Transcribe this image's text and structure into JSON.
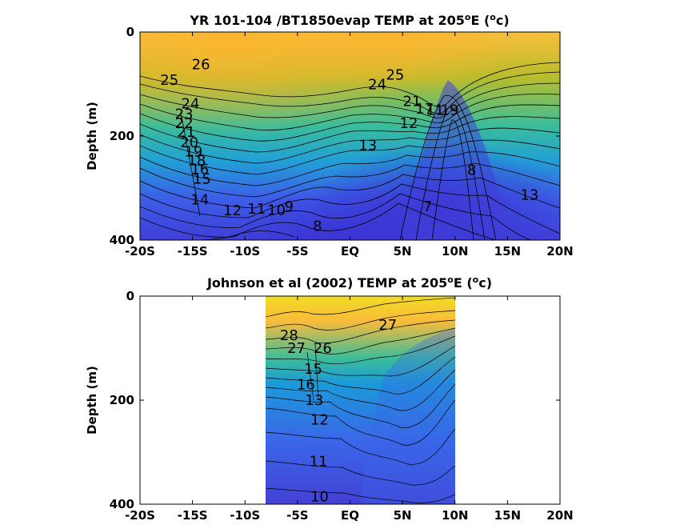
{
  "chart_data": [
    {
      "type": "contour",
      "title": "YR 101-104 /BT1850evap TEMP at 205",
      "title_suffix": "E (",
      "title_end": "c)",
      "title_sup": "o",
      "xlabel": "",
      "ylabel": "Depth (m)",
      "x_ticks": [
        -20,
        -15,
        -10,
        -5,
        0,
        5,
        10,
        15,
        20
      ],
      "x_tick_labels": [
        "-20S",
        "-15S",
        "-10S",
        "-5S",
        "EQ",
        "5N",
        "10N",
        "15N",
        "20N"
      ],
      "xlim": [
        -20,
        20
      ],
      "y_ticks": [
        0,
        200,
        400
      ],
      "y_tick_labels": [
        "0",
        "200",
        "400"
      ],
      "ylim": [
        0,
        400
      ],
      "y_reversed": true,
      "data_xlim": [
        -20,
        20
      ],
      "contour_labels": [
        {
          "text": "26",
          "x": -14.2,
          "y": 62
        },
        {
          "text": "25",
          "x": -17.2,
          "y": 92
        },
        {
          "text": "24",
          "x": -15.2,
          "y": 138
        },
        {
          "text": "23",
          "x": -15.8,
          "y": 158
        },
        {
          "text": "22",
          "x": -15.8,
          "y": 175
        },
        {
          "text": "21",
          "x": -15.6,
          "y": 192
        },
        {
          "text": "20",
          "x": -15.3,
          "y": 212
        },
        {
          "text": "19",
          "x": -14.9,
          "y": 230
        },
        {
          "text": "18",
          "x": -14.6,
          "y": 247
        },
        {
          "text": "16",
          "x": -14.3,
          "y": 264
        },
        {
          "text": "15",
          "x": -14.1,
          "y": 282
        },
        {
          "text": "14",
          "x": -14.3,
          "y": 322
        },
        {
          "text": "12",
          "x": -11.2,
          "y": 343
        },
        {
          "text": "11",
          "x": -8.9,
          "y": 340
        },
        {
          "text": "10",
          "x": -7.0,
          "y": 342
        },
        {
          "text": "9",
          "x": -5.8,
          "y": 335
        },
        {
          "text": "8",
          "x": -3.1,
          "y": 373
        },
        {
          "text": "13",
          "x": 1.7,
          "y": 218
        },
        {
          "text": "24",
          "x": 2.6,
          "y": 101
        },
        {
          "text": "25",
          "x": 4.3,
          "y": 82
        },
        {
          "text": "7",
          "x": 7.4,
          "y": 335
        },
        {
          "text": "8",
          "x": 11.6,
          "y": 265
        },
        {
          "text": "13",
          "x": 17.1,
          "y": 313
        },
        {
          "text": "21",
          "x": 5.9,
          "y": 133
        },
        {
          "text": "17",
          "x": 7.1,
          "y": 148
        },
        {
          "text": "11",
          "x": 8.1,
          "y": 150
        },
        {
          "text": "19",
          "x": 9.5,
          "y": 150
        },
        {
          "text": "12",
          "x": 5.6,
          "y": 175
        }
      ]
    },
    {
      "type": "contour",
      "title": "Johnson et al (2002) TEMP at 205",
      "title_suffix": "E (",
      "title_end": "c)",
      "title_sup": "o",
      "xlabel": "",
      "ylabel": "Depth (m)",
      "x_ticks": [
        -20,
        -15,
        -10,
        -5,
        0,
        5,
        10,
        15,
        20
      ],
      "x_tick_labels": [
        "-20S",
        "-15S",
        "-10S",
        "-5S",
        "EQ",
        "5N",
        "10N",
        "15N",
        "20N"
      ],
      "xlim": [
        -20,
        20
      ],
      "y_ticks": [
        0,
        200,
        400
      ],
      "y_tick_labels": [
        "0",
        "200",
        "400"
      ],
      "ylim": [
        0,
        400
      ],
      "y_reversed": true,
      "data_xlim": [
        -8,
        10
      ],
      "contour_labels": [
        {
          "text": "28",
          "x": -5.8,
          "y": 75
        },
        {
          "text": "27",
          "x": -5.1,
          "y": 100
        },
        {
          "text": "26",
          "x": -2.6,
          "y": 100
        },
        {
          "text": "27",
          "x": 3.6,
          "y": 55
        },
        {
          "text": "15",
          "x": -3.5,
          "y": 140
        },
        {
          "text": "16",
          "x": -4.2,
          "y": 170
        },
        {
          "text": "13",
          "x": -3.4,
          "y": 200
        },
        {
          "text": "12",
          "x": -2.9,
          "y": 238
        },
        {
          "text": "11",
          "x": -3.0,
          "y": 318
        },
        {
          "text": "10",
          "x": -2.9,
          "y": 385
        }
      ]
    }
  ]
}
